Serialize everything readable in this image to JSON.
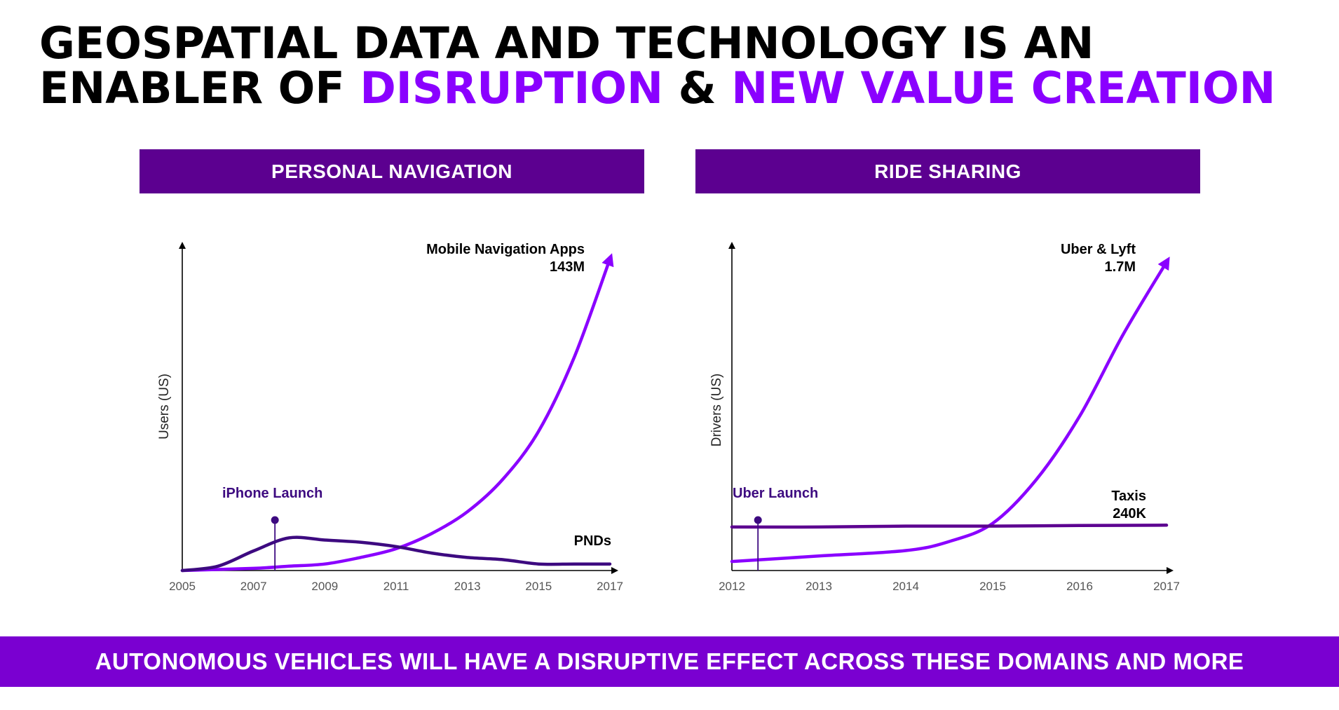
{
  "title": {
    "line1": "GEOSPATIAL DATA AND TECHNOLOGY IS AN",
    "line2_prefix": "ENABLER OF ",
    "line2_accent1": "DISRUPTION",
    "line2_mid": " & ",
    "line2_accent2": "NEW VALUE CREATION"
  },
  "colors": {
    "accent": "#8A00FF",
    "dark_purple": "#3D0A80",
    "banner": "#5C0090",
    "footer": "#7A00D1"
  },
  "footer": {
    "text": "AUTONOMOUS VEHICLES WILL HAVE A DISRUPTIVE EFFECT ACROSS THESE DOMAINS AND MORE"
  },
  "chart_data": [
    {
      "type": "line",
      "banner": "PERSONAL NAVIGATION",
      "ylabel": "Users (US)",
      "xlim": [
        2005,
        2017
      ],
      "ylim": [
        0,
        150
      ],
      "x_ticks": [
        "2005",
        "2007",
        "2009",
        "2011",
        "2013",
        "2015",
        "2017"
      ],
      "annotation": {
        "label": "iPhone Launch",
        "x": 2007.6
      },
      "series": [
        {
          "name": "Mobile Navigation Apps",
          "value_label": "143M",
          "color": "#8A00FF",
          "arrow": true,
          "x": [
            2005,
            2007,
            2008,
            2009,
            2010,
            2011,
            2012,
            2013,
            2014,
            2015,
            2016,
            2017
          ],
          "values": [
            0,
            1,
            2,
            3,
            6,
            10,
            17,
            27,
            42,
            64,
            98,
            143
          ]
        },
        {
          "name": "PNDs",
          "color": "#3D0A80",
          "arrow": false,
          "x": [
            2005,
            2006,
            2007,
            2008,
            2009,
            2010,
            2011,
            2012,
            2013,
            2014,
            2015,
            2016,
            2017
          ],
          "values": [
            0,
            2,
            9,
            15,
            14,
            13,
            11,
            8,
            6,
            5,
            3,
            3,
            3
          ]
        }
      ]
    },
    {
      "type": "line",
      "banner": "RIDE SHARING",
      "ylabel": "Drivers (US)",
      "xlim": [
        2012,
        2017
      ],
      "ylim": [
        0,
        1.8
      ],
      "x_ticks": [
        "2012",
        "2013",
        "2014",
        "2015",
        "2016",
        "2017"
      ],
      "annotation": {
        "label": "Uber Launch",
        "x": 2012.3
      },
      "series": [
        {
          "name": "Uber & Lyft",
          "value_label": "1.7M",
          "color": "#8A00FF",
          "arrow": true,
          "x": [
            2012,
            2013,
            2014,
            2014.5,
            2015,
            2015.5,
            2016,
            2016.5,
            2017
          ],
          "values": [
            0.05,
            0.08,
            0.11,
            0.16,
            0.26,
            0.5,
            0.85,
            1.3,
            1.7
          ]
        },
        {
          "name": "Taxis",
          "value_label": "240K",
          "color": "#5C0090",
          "arrow": false,
          "x": [
            2012,
            2013,
            2014,
            2015,
            2016,
            2017
          ],
          "values": [
            0.24,
            0.24,
            0.245,
            0.245,
            0.248,
            0.25
          ]
        }
      ]
    }
  ]
}
